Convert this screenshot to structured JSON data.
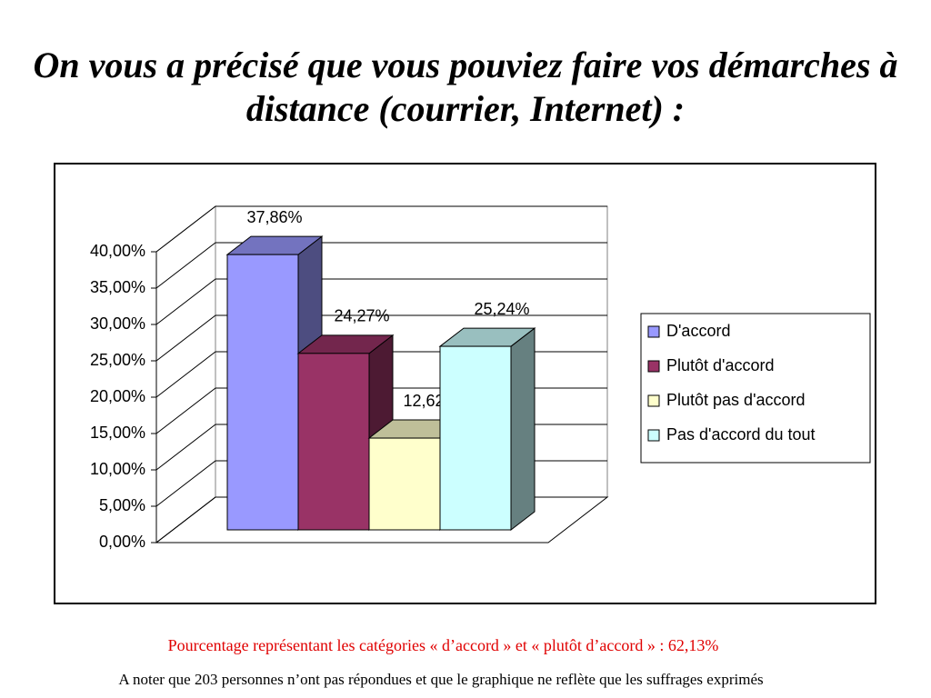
{
  "chart_data": {
    "type": "bar3d",
    "title": "On vous a précisé que vous pouviez faire vos démarches à distance (courrier, Internet) :",
    "series": [
      {
        "name": "D'accord",
        "color": "#9999ff",
        "values": [
          37.86
        ],
        "value_labels": [
          "37,86%"
        ]
      },
      {
        "name": "Plutôt d'accord",
        "color": "#993366",
        "values": [
          24.27
        ],
        "value_labels": [
          "24,27%"
        ]
      },
      {
        "name": "Plutôt pas d'accord",
        "color": "#ffffcc",
        "values": [
          12.62
        ],
        "value_labels": [
          "12,62%"
        ]
      },
      {
        "name": "Pas d'accord du tout",
        "color": "#ccffff",
        "values": [
          25.24
        ],
        "value_labels": [
          "25,24%"
        ]
      }
    ],
    "ylim": [
      0,
      40
    ],
    "yticks": [
      {
        "value": 0,
        "label": "0,00%"
      },
      {
        "value": 5,
        "label": "5,00%"
      },
      {
        "value": 10,
        "label": "10,00%"
      },
      {
        "value": 15,
        "label": "15,00%"
      },
      {
        "value": 20,
        "label": "20,00%"
      },
      {
        "value": 25,
        "label": "25,00%"
      },
      {
        "value": 30,
        "label": "30,00%"
      },
      {
        "value": 35,
        "label": "35,00%"
      },
      {
        "value": 40,
        "label": "40,00%"
      }
    ],
    "grid": true,
    "legend": "right",
    "annotations": [
      "Pourcentage représentant les catégories « d’accord » et « plutôt d’accord » : 62,13%",
      "A noter que 203 personnes n’ont pas répondues et que le graphique ne reflète que les suffrages exprimés"
    ]
  }
}
